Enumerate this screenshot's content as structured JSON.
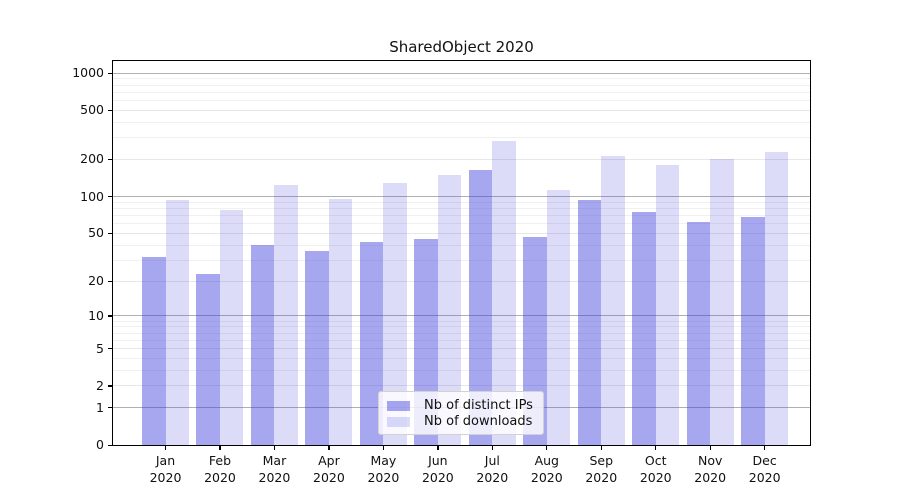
{
  "window": {
    "background": "#ffffff"
  },
  "chart_data": {
    "type": "bar",
    "title": "SharedObject 2020",
    "categories": [
      {
        "line1": "Jan",
        "line2": "2020"
      },
      {
        "line1": "Feb",
        "line2": "2020"
      },
      {
        "line1": "Mar",
        "line2": "2020"
      },
      {
        "line1": "Apr",
        "line2": "2020"
      },
      {
        "line1": "May",
        "line2": "2020"
      },
      {
        "line1": "Jun",
        "line2": "2020"
      },
      {
        "line1": "Jul",
        "line2": "2020"
      },
      {
        "line1": "Aug",
        "line2": "2020"
      },
      {
        "line1": "Sep",
        "line2": "2020"
      },
      {
        "line1": "Oct",
        "line2": "2020"
      },
      {
        "line1": "Nov",
        "line2": "2020"
      },
      {
        "line1": "Dec",
        "line2": "2020"
      }
    ],
    "series": [
      {
        "name": "Nb of distinct IPs",
        "color": "rgba(60,60,222,0.45)",
        "values": [
          32,
          23,
          40,
          36,
          42,
          45,
          165,
          47,
          93,
          75,
          62,
          68
        ]
      },
      {
        "name": "Nb of downloads",
        "color": "rgba(60,60,222,0.18)",
        "values": [
          93,
          78,
          123,
          96,
          128,
          150,
          280,
          113,
          215,
          180,
          200,
          230
        ]
      }
    ],
    "yscale": "log1p",
    "ylim": [
      0,
      1250
    ],
    "yticks": [
      0,
      1,
      2,
      5,
      10,
      20,
      50,
      100,
      200,
      500,
      1000
    ],
    "major_grid_values": [
      1,
      10,
      100,
      1000
    ],
    "grid": true,
    "legend_position": "lower center",
    "xlabel": "",
    "ylabel": ""
  },
  "colors": {
    "grid_major": "#b0b0b0",
    "grid_mid": "#e7e7e7",
    "grid_minor": "#f0f0f0",
    "spine": "#000000",
    "text": "#111111"
  }
}
